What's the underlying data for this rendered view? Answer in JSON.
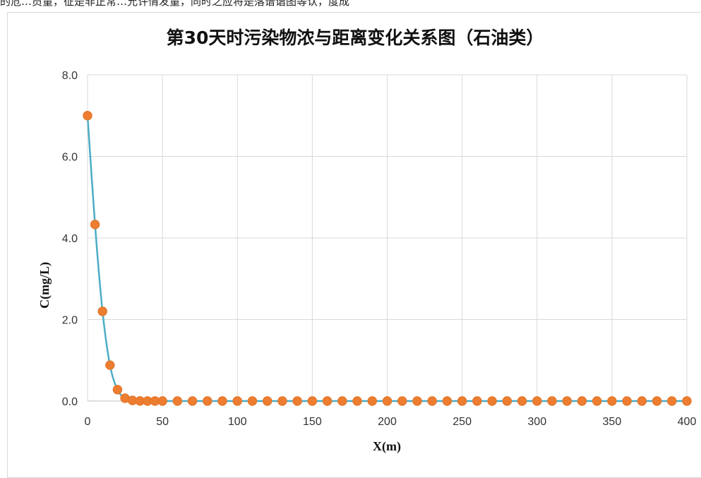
{
  "top_strip_text": "的危…员量，征是非正常…允许情发量，同时之应将是落谱谐图等认，度成",
  "chart_data": {
    "type": "scatter",
    "title": "第30天时污染物浓与距离变化关系图（石油类）",
    "xlabel": "X(m)",
    "ylabel": "C(mg/L)",
    "xlim": [
      0,
      400
    ],
    "ylim": [
      0,
      8
    ],
    "x_ticks": [
      0,
      50,
      100,
      150,
      200,
      250,
      300,
      350,
      400
    ],
    "y_ticks": [
      0,
      2,
      4,
      6,
      8
    ],
    "x_tick_labels": [
      "0",
      "50",
      "100",
      "150",
      "200",
      "250",
      "300",
      "350",
      "400"
    ],
    "y_tick_labels": [
      "0.0",
      "2.0",
      "4.0",
      "6.0",
      "8.0"
    ],
    "grid": true,
    "legend": "none",
    "colors": {
      "marker": "#ED7D31",
      "line": "#4BACC6",
      "grid": "#d9d9d9"
    },
    "series": [
      {
        "x": [
          0,
          5,
          10,
          15,
          20,
          25,
          30,
          35,
          40,
          45,
          50,
          60,
          70,
          80,
          90,
          100,
          110,
          120,
          130,
          140,
          150,
          160,
          170,
          180,
          190,
          200,
          210,
          220,
          230,
          240,
          250,
          260,
          270,
          280,
          290,
          300,
          310,
          320,
          330,
          340,
          350,
          360,
          370,
          380,
          390,
          400
        ],
        "y": [
          7.0,
          4.33,
          2.2,
          0.88,
          0.28,
          0.07,
          0.015,
          0.003,
          0.0,
          0.0,
          0.0,
          0.0,
          0.0,
          0.0,
          0.0,
          0.0,
          0.0,
          0.0,
          0.0,
          0.0,
          0.0,
          0.0,
          0.0,
          0.0,
          0.0,
          0.0,
          0.0,
          0.0,
          0.0,
          0.0,
          0.0,
          0.0,
          0.0,
          0.0,
          0.0,
          0.0,
          0.0,
          0.0,
          0.0,
          0.0,
          0.0,
          0.0,
          0.0,
          0.0,
          0.0,
          0.0
        ]
      }
    ]
  }
}
